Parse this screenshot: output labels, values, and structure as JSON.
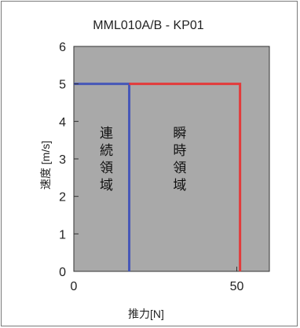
{
  "chart_data": {
    "type": "line",
    "title": "MML010A/B - KP01",
    "xlabel": "推力[N]",
    "ylabel": "速度 [m/s]",
    "xlim": [
      0,
      60
    ],
    "ylim": [
      0,
      6
    ],
    "x_ticks": [
      0,
      50
    ],
    "y_ticks": [
      0,
      1,
      2,
      3,
      4,
      5,
      6
    ],
    "grid": false,
    "plot_background": "#a9a9a9",
    "series": [
      {
        "color": "#4657b8",
        "points": [
          [
            0,
            5
          ],
          [
            17,
            5
          ],
          [
            17,
            0
          ]
        ]
      },
      {
        "color": "#e33a3a",
        "points": [
          [
            17,
            5
          ],
          [
            51,
            5
          ],
          [
            51,
            0
          ]
        ]
      }
    ],
    "annotations": [
      {
        "text": "連\n続\n領\n域",
        "x": 10,
        "y": 3
      },
      {
        "text": "瞬\n時\n領\n域",
        "x": 32.5,
        "y": 3
      }
    ]
  }
}
